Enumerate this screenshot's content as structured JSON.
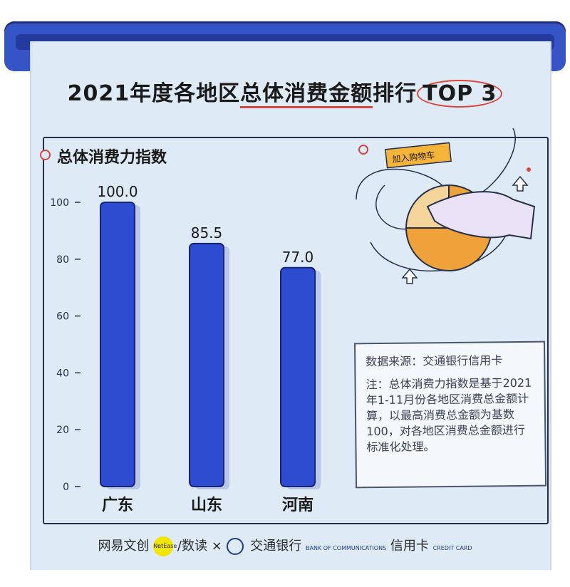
{
  "title": {
    "prefix": "2021年度各地区",
    "underlined": "总体消费金额",
    "middle": "排行",
    "circled": "TOP 3"
  },
  "chart_data": {
    "type": "bar",
    "title": "总体消费力指数",
    "categories": [
      "广东",
      "山东",
      "河南"
    ],
    "values": [
      100.0,
      85.5,
      77.0
    ],
    "value_labels": [
      "100.0",
      "85.5",
      "77.0"
    ],
    "ylim": [
      0,
      100
    ],
    "yticks": [
      0,
      20,
      40,
      60,
      80,
      100
    ],
    "grid": false,
    "bar_color": "#2d4ccf"
  },
  "illustration": {
    "tag_text": "加入购物车",
    "icons": [
      "hand-icon",
      "pie-chart-icon",
      "arrow-up-icon"
    ]
  },
  "note": {
    "source": "数据来源：交通银行信用卡",
    "remark": "注：总体消费力指数是基于2021年1-11月份各地区消费总金额计算，以最高消费总金额为基数100，对各地区消费总金额进行标准化处理。"
  },
  "footer": {
    "brand1": "网易文创",
    "brand1_badge": "NetEase",
    "brand2": "/数读",
    "cross": "×",
    "bank_cn": "交通银行",
    "bank_en": "BANK OF COMMUNICATIONS",
    "card_cn": "信用卡",
    "card_en": "CREDIT CARD"
  },
  "colors": {
    "accent": "#d9463b",
    "roll": "#3754c6",
    "paper": "#dfeaf7"
  }
}
